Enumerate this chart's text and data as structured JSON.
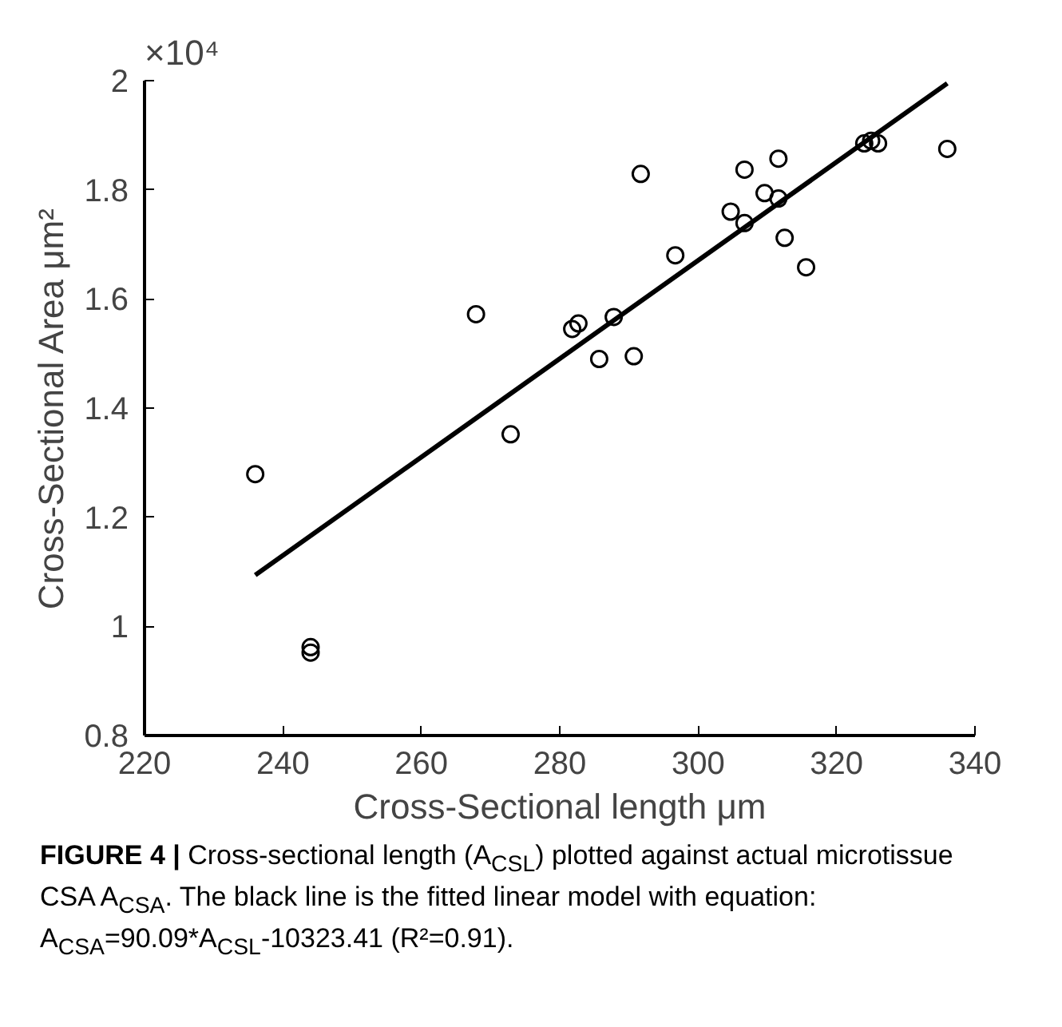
{
  "chart_data": {
    "type": "scatter",
    "xlabel": "Cross-Sectional length μm",
    "ylabel": "Cross-Sectional Area μm²",
    "annotations": [
      "×10⁴",
      "FIGURE 4 | Cross-sectional length (A$_{CSL}$) plotted against actual microtissue CSA A$_{CSA}$. The black line is the fitted linear model with equation: A$_{CSA}$=90.09*A$_{CSL}$-10323.41 (R²=0.91)."
    ],
    "series": [
      {
        "color": "#000000",
        "marker": "circle",
        "x": [
          236,
          244,
          244,
          267.9,
          272.9,
          281.8,
          282.7,
          287.8,
          285.7,
          290.7,
          291.7,
          296.7,
          304.7,
          306.7,
          306.7,
          309.6,
          311.6,
          311.6,
          312.5,
          315.6,
          324,
          325,
          326,
          336
        ],
        "values": [
          1.279,
          0.962,
          0.952,
          1.572,
          1.352,
          1.545,
          1.555,
          1.567,
          1.49,
          1.495,
          1.829,
          1.68,
          1.76,
          1.739,
          1.837,
          1.794,
          1.784,
          1.857,
          1.712,
          1.658,
          1.885,
          1.89,
          1.885,
          1.875
        ]
      },
      {
        "type": "line",
        "color": "#000000",
        "line_style": "solid",
        "x": [
          236,
          336
        ],
        "values": [
          1.094,
          1.995
        ]
      }
    ],
    "xlim": [
      220,
      340
    ],
    "xticks": [
      220,
      240,
      260,
      280,
      300,
      320,
      340
    ],
    "ylim": [
      0.8,
      2
    ],
    "yticks": [
      0.8,
      1,
      1.2,
      1.4,
      1.6,
      1.8,
      2
    ],
    "grid": false
  }
}
